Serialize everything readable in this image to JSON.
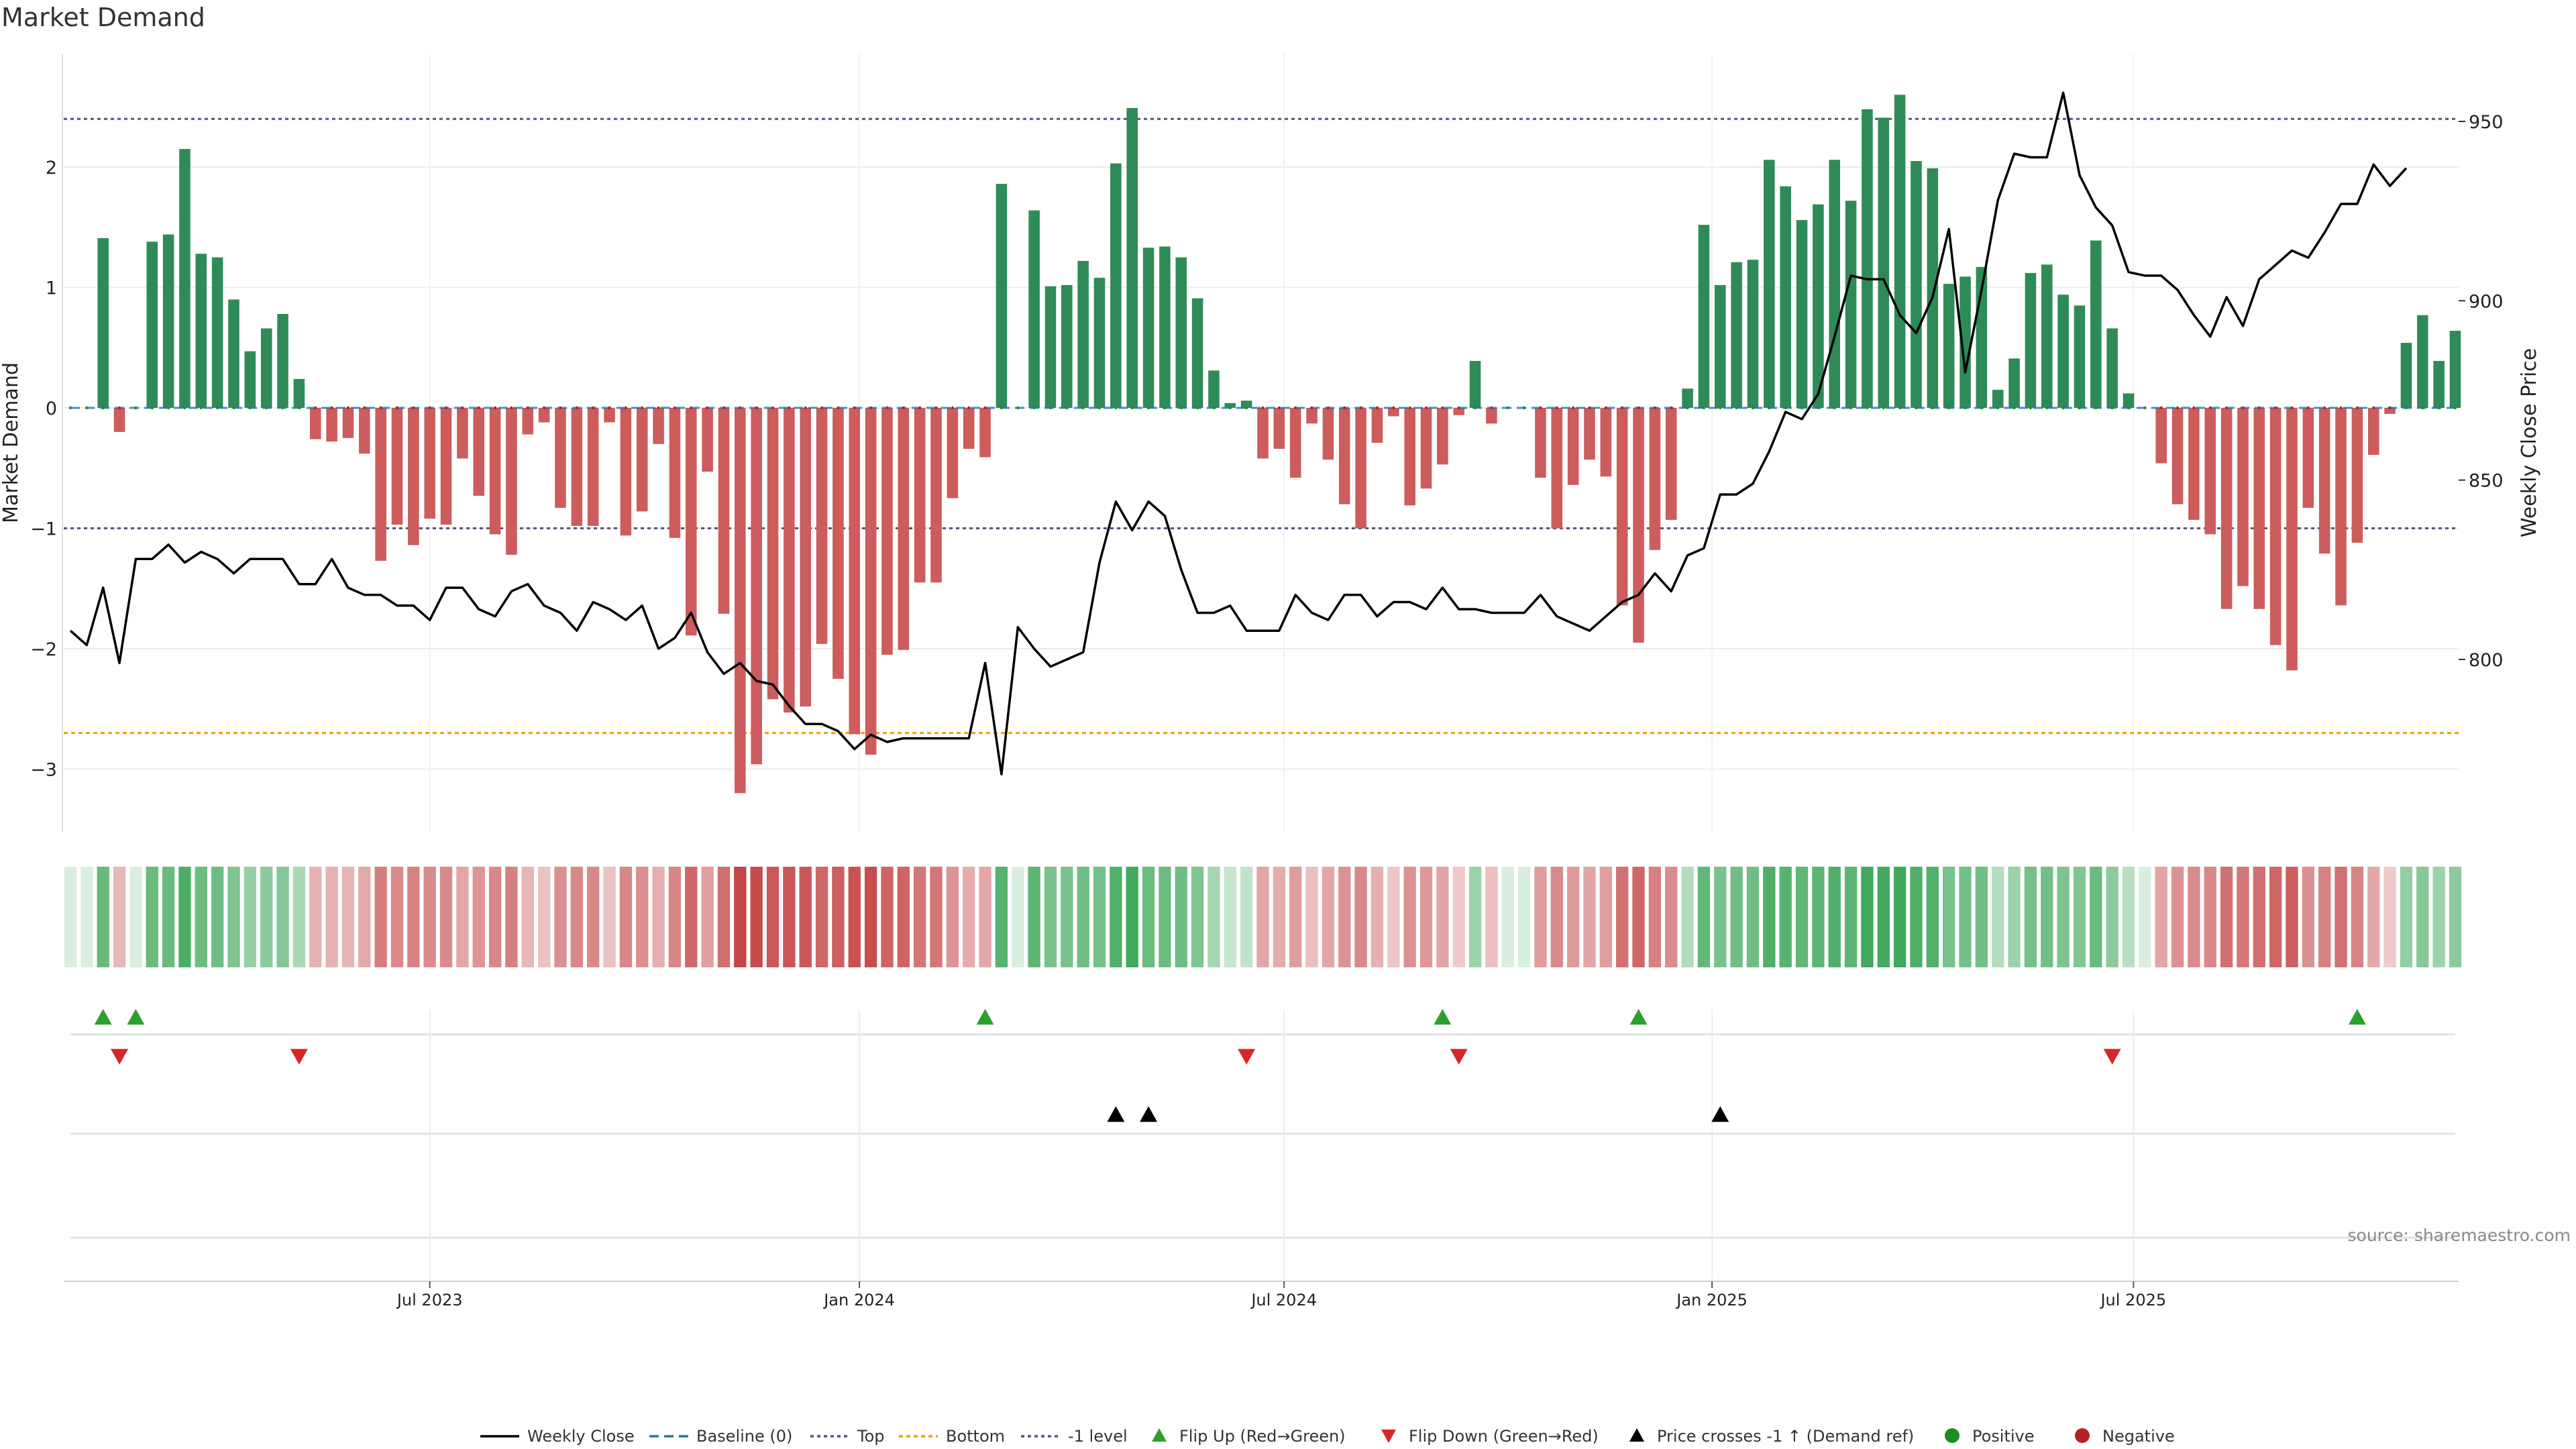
{
  "chart_data": {
    "type": "bar",
    "title": "Market Demand",
    "ylabel_left": "Market Demand",
    "ylabel_right": "Weekly Close Price",
    "ylim_left": [
      -3.5,
      2.95
    ],
    "ylim_right": [
      760,
      970
    ],
    "y_ticks_left": [
      2,
      1,
      0,
      -1,
      -2,
      -3
    ],
    "y_tick_labels_left": [
      "2",
      "1",
      "0",
      "−1",
      "−2",
      "−3"
    ],
    "y_ticks_right": [
      950,
      900,
      850,
      800
    ],
    "y_tick_labels_right": [
      "950",
      "900",
      "850",
      "800"
    ],
    "x_tick_labels": [
      "Jul 2023",
      "Jan 2024",
      "Jul 2024",
      "Jan 2025",
      "Jul 2025"
    ],
    "x_tick_index": [
      22,
      48.3,
      74.3,
      100.5,
      126.3
    ],
    "reference_lines": {
      "top": 2.4,
      "bottom": -2.7,
      "minus_one": -1
    },
    "colors": {
      "positive_bar": "#2e8b57",
      "negative_bar": "#cd5c5c",
      "price_line": "#000000",
      "baseline": "#1f77b4",
      "top_line": "#555577",
      "bottom_line": "#ff9900",
      "flip_up": "#2ca02c",
      "flip_down": "#d62728",
      "price_cross": "#000000",
      "positive_dot": "#228b22",
      "negative_dot": "#b22222"
    },
    "demand": [
      0,
      0,
      1.41,
      -0.2,
      0,
      1.38,
      1.44,
      2.15,
      1.28,
      1.25,
      0.9,
      0.47,
      0.66,
      0.78,
      0.24,
      -0.26,
      -0.28,
      -0.25,
      -0.38,
      -1.27,
      -0.97,
      -1.14,
      -0.92,
      -0.97,
      -0.42,
      -0.73,
      -1.05,
      -1.22,
      -0.22,
      -0.12,
      -0.83,
      -0.98,
      -0.98,
      -0.12,
      -1.06,
      -0.86,
      -0.3,
      -1.08,
      -1.89,
      -0.53,
      -1.71,
      -3.2,
      -2.96,
      -2.42,
      -2.53,
      -2.48,
      -1.96,
      -2.25,
      -2.71,
      -2.88,
      -2.05,
      -2.01,
      -1.45,
      -1.45,
      -0.75,
      -0.34,
      -0.41,
      1.86,
      0,
      1.64,
      1.01,
      1.02,
      1.22,
      1.08,
      2.03,
      2.49,
      1.33,
      1.34,
      1.25,
      0.91,
      0.31,
      0.04,
      0.06,
      -0.42,
      -0.34,
      -0.58,
      -0.13,
      -0.43,
      -0.8,
      -1.0,
      -0.29,
      -0.07,
      -0.81,
      -0.67,
      -0.47,
      -0.06,
      0.39,
      -0.13,
      0,
      0,
      -0.58,
      -1.0,
      -0.64,
      -0.43,
      -0.57,
      -1.64,
      -1.95,
      -1.18,
      -0.93,
      0.16,
      1.52,
      1.02,
      1.21,
      1.23,
      2.06,
      1.84,
      1.56,
      1.69,
      2.06,
      1.72,
      2.48,
      2.41,
      2.6,
      2.05,
      1.99,
      1.03,
      1.09,
      1.17,
      0.15,
      0.41,
      1.12,
      1.19,
      0.94,
      0.85,
      1.39,
      0.66,
      0.12,
      0,
      -0.46,
      -0.8,
      -0.93,
      -1.05,
      -1.67,
      -1.48,
      -1.67,
      -1.97,
      -2.18,
      -0.83,
      -1.21,
      -1.64,
      -1.12,
      -0.39,
      -0.05,
      0.54,
      0.77,
      0.39,
      0.64
    ],
    "price": [
      808,
      804,
      820,
      799,
      828,
      828,
      832,
      827,
      830,
      828,
      824,
      828,
      828,
      828,
      821,
      821,
      828,
      820,
      818,
      818,
      815,
      815,
      811,
      820,
      820,
      814,
      812,
      819,
      821,
      815,
      813,
      808,
      816,
      814,
      811,
      815,
      803,
      806,
      813,
      802,
      796,
      799,
      794,
      793,
      787,
      782,
      782,
      780,
      775,
      779,
      777,
      778,
      778,
      778,
      778,
      778,
      799,
      768,
      809,
      803,
      798,
      800,
      802,
      827,
      844,
      836,
      844,
      840,
      825,
      813,
      813,
      815,
      808,
      808,
      808,
      818,
      813,
      811,
      818,
      818,
      812,
      816,
      816,
      814,
      820,
      814,
      814,
      813,
      813,
      813,
      818,
      812,
      810,
      808,
      812,
      816,
      818,
      824,
      819,
      829,
      831,
      846,
      846,
      849,
      858,
      869,
      867,
      874,
      890,
      907,
      906,
      906,
      896,
      891,
      901,
      920,
      880,
      903,
      928,
      941,
      940,
      940,
      958,
      935,
      926,
      921,
      908,
      907,
      907,
      903,
      896,
      890,
      901,
      893,
      906,
      910,
      914,
      912,
      919,
      927,
      927,
      938,
      932,
      937
    ],
    "heat_strip_levels": "demand magnitude shades",
    "flip_up_index": [
      2,
      4,
      56,
      84,
      96,
      140
    ],
    "flip_down_index": [
      3,
      14,
      72,
      85,
      125
    ],
    "price_cross_index": [
      64,
      66,
      101
    ],
    "legend": [
      "Weekly Close",
      "Baseline (0)",
      "Top",
      "Bottom",
      "-1 level",
      "Flip Up (Red→Green)",
      "Flip Down (Green→Red)",
      "Price crosses -1 ↑ (Demand ref)",
      "Positive",
      "Negative"
    ],
    "source": "source: sharemaestro.com",
    "grid": true
  }
}
